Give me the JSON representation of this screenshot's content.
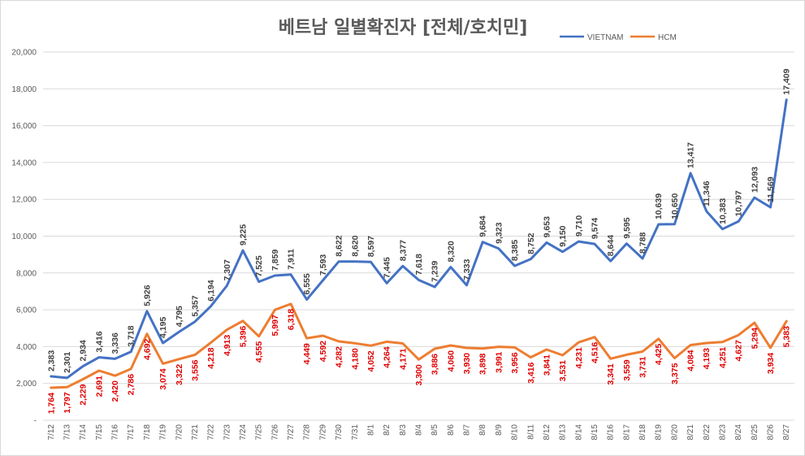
{
  "chart_data": {
    "type": "line",
    "title": "베트남  일별확진자 [전체/호치민]",
    "xlabel": "",
    "ylabel": "",
    "ylim": [
      0,
      20000
    ],
    "yticks": [
      0,
      2000,
      4000,
      6000,
      8000,
      10000,
      12000,
      14000,
      16000,
      18000,
      20000
    ],
    "ytick_labels": [
      "-",
      "2,000",
      "4,000",
      "6,000",
      "8,000",
      "10,000",
      "12,000",
      "14,000",
      "16,000",
      "18,000",
      "20,000"
    ],
    "grid": true,
    "legend_position": "top-right",
    "categories": [
      "7/12",
      "7/13",
      "7/14",
      "7/15",
      "7/16",
      "7/17",
      "7/18",
      "7/19",
      "7/20",
      "7/21",
      "7/22",
      "7/23",
      "7/24",
      "7/25",
      "7/26",
      "7/27",
      "7/28",
      "7/29",
      "7/30",
      "7/31",
      "8/1",
      "8/2",
      "8/3",
      "8/4",
      "8/5",
      "8/6",
      "8/7",
      "8/8",
      "8/9",
      "8/10",
      "8/11",
      "8/12",
      "8/13",
      "8/14",
      "8/15",
      "8/16",
      "8/17",
      "8/18",
      "8/19",
      "8/20",
      "8/21",
      "8/22",
      "8/23",
      "8/24",
      "8/25",
      "8/26",
      "8/27"
    ],
    "series": [
      {
        "name": "VIETNAM",
        "color": "#4472c4",
        "values": [
          2383,
          2301,
          2934,
          3416,
          3336,
          3718,
          5926,
          4195,
          4795,
          5357,
          6194,
          7307,
          9225,
          7525,
          7859,
          7911,
          6555,
          7593,
          8622,
          8620,
          8597,
          7445,
          8377,
          7618,
          7239,
          8320,
          7333,
          9684,
          9323,
          8385,
          8752,
          9653,
          9150,
          9710,
          9574,
          8644,
          9595,
          8788,
          10639,
          10650,
          13417,
          11346,
          10383,
          10797,
          12093,
          11569,
          17409
        ],
        "labels": [
          "2,383",
          "2,301",
          "2,934",
          "3,416",
          "3,336",
          "3,718",
          "5,926",
          "4,195",
          "4,795",
          "5,357",
          "6,194",
          "7,307",
          "9,225",
          "7,525",
          "7,859",
          "7,911",
          "6,555",
          "7,593",
          "8,622",
          "8,620",
          "8,597",
          "7,445",
          "8,377",
          "7,618",
          "7,239",
          "8,320",
          "7,333",
          "9,684",
          "9,323",
          "8,385",
          "8,752",
          "9,653",
          "9,150",
          "9,710",
          "9,574",
          "8,644",
          "9,595",
          "8,788",
          "10,639",
          "10,650",
          "13,417",
          "11,346",
          "10,383",
          "10,797",
          "12,093",
          "11,569",
          "17,409"
        ]
      },
      {
        "name": "HCM",
        "color": "#ed7d31",
        "values": [
          1764,
          1797,
          2229,
          2691,
          2420,
          2786,
          4692,
          3074,
          3322,
          3556,
          4218,
          4913,
          5396,
          4555,
          5997,
          6318,
          4449,
          4592,
          4282,
          4180,
          4052,
          4264,
          4171,
          3300,
          3886,
          4060,
          3930,
          3898,
          3991,
          3956,
          3416,
          3841,
          3531,
          4231,
          4516,
          3341,
          3559,
          3731,
          4425,
          3375,
          4084,
          4193,
          4251,
          4627,
          5294,
          3934,
          5383
        ],
        "labels": [
          "1,764",
          "1,797",
          "2,229",
          "2,691",
          "2,420",
          "2,786",
          "4,692",
          "3,074",
          "3,322",
          "3,556",
          "4,218",
          "4,913",
          "5,396",
          "4,555",
          "5,997",
          "6,318",
          "4,449",
          "4,592",
          "4,282",
          "4,180",
          "4,052",
          "4,264",
          "4,171",
          "3,300",
          "3,886",
          "4,060",
          "3,930",
          "3,898",
          "3,991",
          "3,956",
          "3,416",
          "3,841",
          "3,531",
          "4,231",
          "4,516",
          "3,341",
          "3,559",
          "3,731",
          "4,425",
          "3,375",
          "4,084",
          "4,193",
          "4,251",
          "4,627",
          "5,294",
          "3,934",
          "5,383"
        ]
      }
    ]
  }
}
